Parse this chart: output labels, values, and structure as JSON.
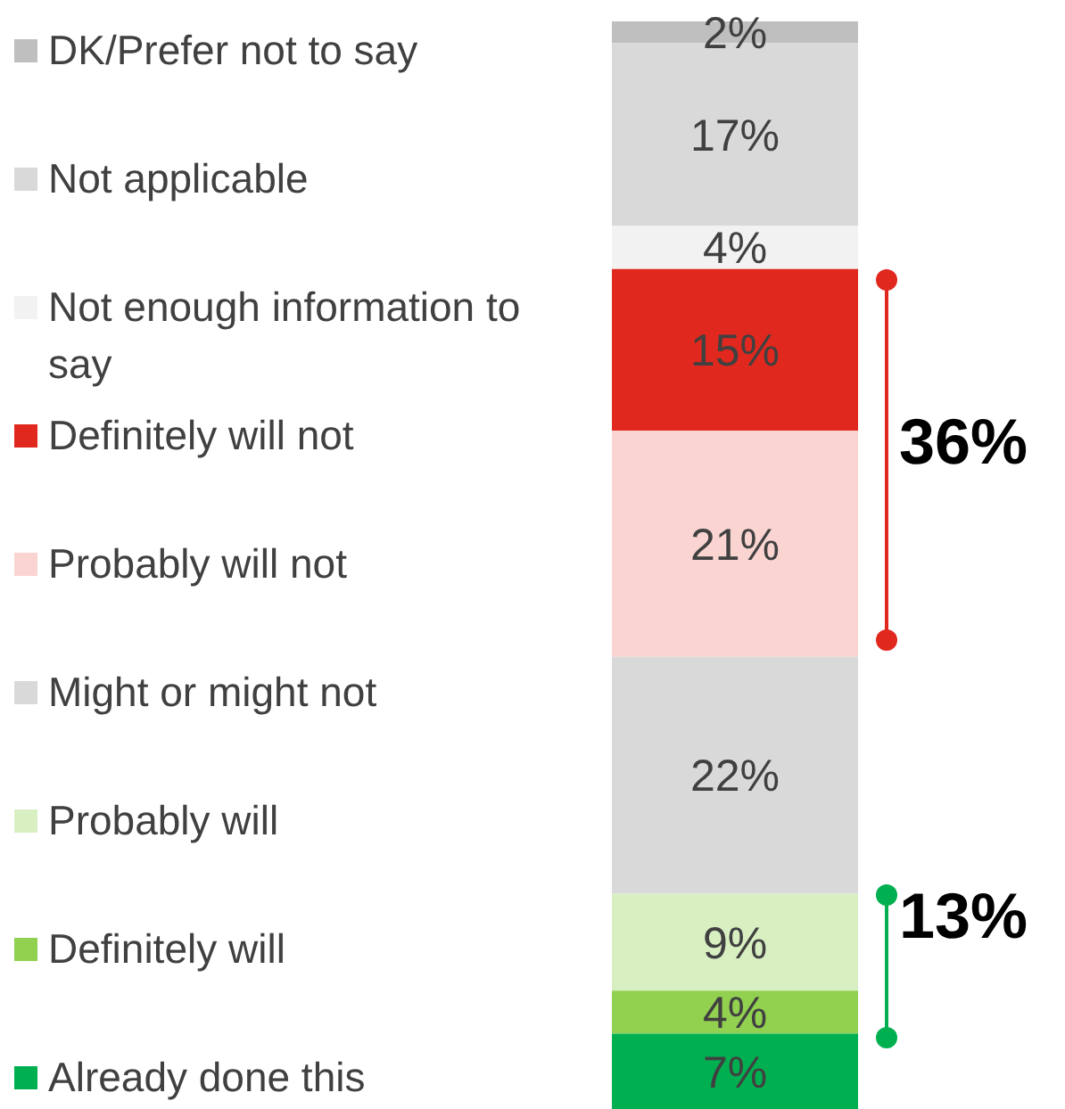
{
  "chart_data": {
    "type": "bar",
    "stacked": true,
    "categories": [
      null
    ],
    "legend": "left",
    "tick_labels": false,
    "series": [
      {
        "name": "Already done this",
        "color": "#00b050",
        "values": [
          7
        ],
        "value_labels": [
          "7%"
        ]
      },
      {
        "name": "Definitely will",
        "color": "#92d050",
        "values": [
          4
        ],
        "value_labels": [
          "4%"
        ]
      },
      {
        "name": "Probably will",
        "color": "#d8efc2",
        "values": [
          9
        ],
        "value_labels": [
          "9%"
        ]
      },
      {
        "name": "Might or might not",
        "color": "#d9d9d9",
        "values": [
          22
        ],
        "value_labels": [
          "22%"
        ]
      },
      {
        "name": "Probably will not",
        "color": "#f9d4d1",
        "values": [
          21
        ],
        "value_labels": [
          "21%"
        ]
      },
      {
        "name": "Definitely will not",
        "color": "#e0281e",
        "values": [
          15
        ],
        "value_labels": [
          "15%"
        ]
      },
      {
        "name": "Not enough information to say",
        "color": "#f2f2f2",
        "values": [
          4
        ],
        "value_labels": [
          "4%"
        ]
      },
      {
        "name": "Not applicable",
        "color": "#d9d9d9",
        "values": [
          17
        ],
        "value_labels": [
          "17%"
        ]
      },
      {
        "name": "DK/Prefer not to say",
        "color": "#bfbfbf",
        "values": [
          2
        ],
        "value_labels": [
          "2%"
        ]
      }
    ],
    "annotations": [
      "36%",
      "13%"
    ]
  }
}
